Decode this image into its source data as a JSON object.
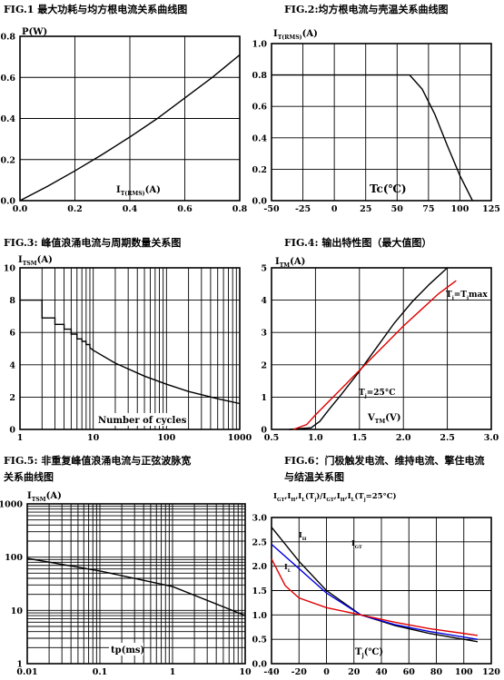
{
  "figures": [
    {
      "id": "fig1",
      "title": "FIG.1  最大功耗与均方根电流关系曲线图",
      "ylabel": "P(W)",
      "xlabel": "I",
      "xlabel_sub": "T(RMS)",
      "xlabel_tail": "(A)",
      "xticks": [
        "0.0",
        "0.2",
        "0.4",
        "0.6",
        "0.8"
      ],
      "yticks": [
        "0.0",
        "0.2",
        "0.4",
        "0.6",
        "0.8"
      ]
    },
    {
      "id": "fig2",
      "title": "FIG.2:均方根电流与壳温关系曲线图",
      "ylabel": "I",
      "ylabel_sub": "T(RMS)",
      "ylabel_tail": "(A)",
      "xlabel": "Tc(℃)",
      "xticks": [
        "-50",
        "-25",
        "0",
        "25",
        "50",
        "75",
        "100",
        "125"
      ],
      "yticks": [
        "0.0",
        "0.2",
        "0.4",
        "0.6",
        "0.8",
        "1.0"
      ]
    },
    {
      "id": "fig3",
      "title": "FIG.3:  峰值浪涌电流与周期数量关系图",
      "ylabel": "I",
      "ylabel_sub": "TSM",
      "ylabel_tail": "(A)",
      "xlabel": "Number of cycles",
      "xticks": [
        "1",
        "10",
        "100",
        "1000"
      ],
      "yticks": [
        "0",
        "2",
        "4",
        "6",
        "8",
        "10"
      ]
    },
    {
      "id": "fig4",
      "title": "FIG.4:  输出特性图（最大值图）",
      "ylabel": "I",
      "ylabel_sub": "TM",
      "ylabel_tail": "(A)",
      "xlabel": "V",
      "xlabel_sub": "TM",
      "xlabel_tail": "(V)",
      "xticks": [
        "0.5",
        "1.0",
        "1.5",
        "2.0",
        "2.5",
        "3.0"
      ],
      "yticks": [
        "0",
        "1",
        "2",
        "3",
        "4",
        "5"
      ],
      "annotations": [
        "T",
        "j",
        "=T",
        "j",
        "max",
        "T",
        "j",
        "=25°C"
      ]
    },
    {
      "id": "fig5",
      "title": "FIG.5:  非重复峰值浪涌电流与正弦波脉宽",
      "title2": "关系曲线图",
      "ylabel": "I",
      "ylabel_sub": "TSM",
      "ylabel_tail": "(A)",
      "xlabel": "tp(ms)",
      "xticks": [
        "0.01",
        "0.1",
        "1",
        "10"
      ],
      "yticks": [
        "1",
        "10",
        "100",
        "1000"
      ]
    },
    {
      "id": "fig6",
      "title": "FIG.6：门极触发电流、维持电流、擎住电流",
      "title2": "与结温关系图",
      "ylabel": "I",
      "ylabel_sub": "GT",
      "ylabel_tail": ",I",
      "ylabel_sub2": "H",
      "ylabel_tail2": ",I",
      "ylabel_sub3": "L",
      "ylabel_tail3": "(T",
      "ylabel_sub4": "j",
      "ylabel_tail4": ")/I",
      "ylabel_sub5": "GT",
      "ylabel_tail5": ",I",
      "ylabel_sub6": "H",
      "ylabel_tail6": ",I",
      "ylabel_sub7": "L",
      "ylabel_tail7": "(T",
      "ylabel_sub8": "j",
      "ylabel_tail8": "=25°C)",
      "xlabel": "T",
      "xlabel_sub": "j",
      "xlabel_tail": "(℃)",
      "xticks": [
        "-40",
        "-20",
        "0",
        "20",
        "40",
        "60",
        "80",
        "100",
        "120"
      ],
      "yticks": [
        "0.0",
        "0.5",
        "1.0",
        "1.5",
        "2.0",
        "2.5",
        "3.0"
      ],
      "annotations": [
        "I",
        "H",
        "I",
        "GT",
        "I",
        "L"
      ]
    }
  ],
  "chart_data": [
    {
      "type": "line",
      "title": "FIG.1  最大功耗与均方根电流关系曲线图",
      "xlabel": "IT(RMS)(A)",
      "ylabel": "P(W)",
      "xlim": [
        0,
        0.8
      ],
      "ylim": [
        0,
        0.8
      ],
      "grid": true,
      "series": [
        {
          "x": [
            0,
            0.1,
            0.2,
            0.3,
            0.4,
            0.5,
            0.6,
            0.7,
            0.8
          ],
          "y": [
            0,
            0.07,
            0.145,
            0.225,
            0.31,
            0.4,
            0.5,
            0.6,
            0.71
          ]
        }
      ]
    },
    {
      "type": "line",
      "title": "FIG.2:均方根电流与壳温关系曲线图",
      "xlabel": "Tc(℃)",
      "ylabel": "IT(RMS)(A)",
      "xlim": [
        -50,
        125
      ],
      "ylim": [
        0,
        1.0
      ],
      "grid": true,
      "series": [
        {
          "x": [
            -50,
            60,
            70,
            80,
            85,
            90,
            100,
            110
          ],
          "y": [
            0.8,
            0.8,
            0.71,
            0.55,
            0.45,
            0.35,
            0.16,
            0
          ]
        }
      ]
    },
    {
      "type": "line",
      "title": "FIG.3:  峰值浪涌电流与周期数量关系图",
      "xlabel": "Number of cycles",
      "ylabel": "ITSM(A)",
      "xscale": "log",
      "xlim": [
        1,
        1000
      ],
      "ylim": [
        0,
        10
      ],
      "grid": true,
      "series": [
        {
          "x": [
            1,
            2,
            2,
            3,
            3,
            4,
            4,
            5,
            5,
            6,
            6,
            7,
            7,
            8,
            8,
            9,
            9,
            10,
            20,
            50,
            100,
            200,
            500,
            1000
          ],
          "y": [
            8,
            8,
            6.9,
            6.9,
            6.5,
            6.5,
            6.2,
            6.2,
            5.9,
            5.9,
            5.6,
            5.6,
            5.45,
            5.45,
            5.25,
            5.25,
            5.05,
            4.9,
            4.1,
            3.3,
            2.8,
            2.35,
            1.9,
            1.6
          ]
        }
      ]
    },
    {
      "type": "line",
      "title": "FIG.4:  输出特性图（最大值图）",
      "xlabel": "VTM(V)",
      "ylabel": "ITM(A)",
      "xlim": [
        0.5,
        3.0
      ],
      "ylim": [
        0,
        5
      ],
      "grid": true,
      "series": [
        {
          "name": "Tj=25°C",
          "color": "#000000",
          "x": [
            0.7,
            0.95,
            1.05,
            1.15,
            1.3,
            1.5,
            1.7,
            1.9,
            2.1,
            2.3,
            2.5
          ],
          "y": [
            0,
            0.05,
            0.25,
            0.6,
            1.1,
            1.8,
            2.55,
            3.3,
            3.95,
            4.5,
            5.0
          ]
        },
        {
          "name": "Tj=Tjmax",
          "color": "#e00000",
          "x": [
            0.75,
            0.9,
            1.0,
            1.2,
            1.4,
            1.6,
            1.8,
            2.0,
            2.2,
            2.4,
            2.6
          ],
          "y": [
            0,
            0.15,
            0.45,
            1.0,
            1.55,
            2.1,
            2.65,
            3.2,
            3.7,
            4.2,
            4.6
          ]
        }
      ]
    },
    {
      "type": "line",
      "title": "FIG.5:  非重复峰值浪涌电流与正弦波脉宽关系曲线图",
      "xlabel": "tp(ms)",
      "ylabel": "ITSM(A)",
      "xscale": "log",
      "yscale": "log",
      "xlim": [
        0.01,
        10
      ],
      "ylim": [
        1,
        1000
      ],
      "grid": true,
      "series": [
        {
          "x": [
            0.01,
            0.1,
            1,
            10
          ],
          "y": [
            95,
            55,
            28,
            8
          ]
        }
      ]
    },
    {
      "type": "line",
      "title": "FIG.6：门极触发电流、维持电流、擎住电流与结温关系图",
      "xlabel": "Tj(℃)",
      "ylabel": "IGT,IH,IL(Tj)/IGT,IH,IL(Tj=25°C)",
      "xlim": [
        -40,
        120
      ],
      "ylim": [
        0,
        3.0
      ],
      "grid": true,
      "series": [
        {
          "name": "IH",
          "color": "#000000",
          "x": [
            -40,
            -20,
            0,
            25,
            50,
            75,
            110
          ],
          "y": [
            2.8,
            2.1,
            1.5,
            1.0,
            0.78,
            0.62,
            0.45
          ]
        },
        {
          "name": "IGT",
          "color": "#0000e0",
          "x": [
            -40,
            -20,
            0,
            25,
            50,
            75,
            110
          ],
          "y": [
            2.45,
            1.95,
            1.45,
            1.0,
            0.8,
            0.66,
            0.5
          ]
        },
        {
          "name": "IL",
          "color": "#e00000",
          "x": [
            -40,
            -30,
            -20,
            0,
            25,
            50,
            75,
            110
          ],
          "y": [
            2.15,
            1.6,
            1.35,
            1.15,
            1.0,
            0.85,
            0.72,
            0.58
          ]
        }
      ]
    }
  ]
}
